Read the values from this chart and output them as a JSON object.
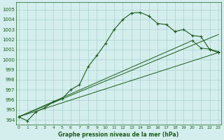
{
  "title": "Graphe pression niveau de la mer (hPa)",
  "bg_color": "#d4eeed",
  "grid_color": "#aacfcf",
  "line_color": "#1a5c1a",
  "ylim": [
    993.5,
    1005.7
  ],
  "yticks": [
    994,
    995,
    996,
    997,
    998,
    999,
    1000,
    1001,
    1002,
    1003,
    1004,
    1005
  ],
  "xlim": [
    -0.3,
    23.3
  ],
  "xticks": [
    0,
    1,
    2,
    3,
    4,
    5,
    6,
    7,
    8,
    9,
    10,
    11,
    12,
    13,
    14,
    15,
    16,
    17,
    18,
    19,
    20,
    21,
    22,
    23
  ],
  "x_labels": [
    "0",
    "1",
    "2",
    "3",
    "4",
    "5",
    "6",
    "7",
    "8",
    "9",
    "10",
    "11",
    "12",
    "13",
    "14",
    "15",
    "16",
    "17",
    "18",
    "19",
    "20",
    "21",
    "22",
    "23"
  ],
  "y_main": [
    994.3,
    993.9,
    994.8,
    995.2,
    995.8,
    996.1,
    997.0,
    997.5,
    999.3,
    1000.4,
    1001.6,
    1003.0,
    1004.0,
    1004.65,
    1004.7,
    1004.35,
    1003.6,
    1003.5,
    1002.8,
    1003.0,
    1002.4,
    1002.3,
    1001.0,
    1000.7
  ],
  "x_main": [
    0,
    1,
    2,
    3,
    4,
    5,
    6,
    7,
    8,
    9,
    10,
    11,
    12,
    13,
    14,
    15,
    16,
    17,
    18,
    19,
    20,
    21,
    22,
    23
  ],
  "y_line2_x": [
    0,
    20,
    21,
    22,
    23
  ],
  "y_line2_y": [
    994.3,
    1001.9,
    1001.15,
    1001.05,
    1000.8
  ],
  "y_line3_x": [
    0,
    23
  ],
  "y_line3_y": [
    994.3,
    1002.5
  ],
  "y_line4_x": [
    0,
    23
  ],
  "y_line4_y": [
    994.3,
    1000.7
  ],
  "figsize": [
    3.2,
    2.0
  ],
  "dpi": 100
}
